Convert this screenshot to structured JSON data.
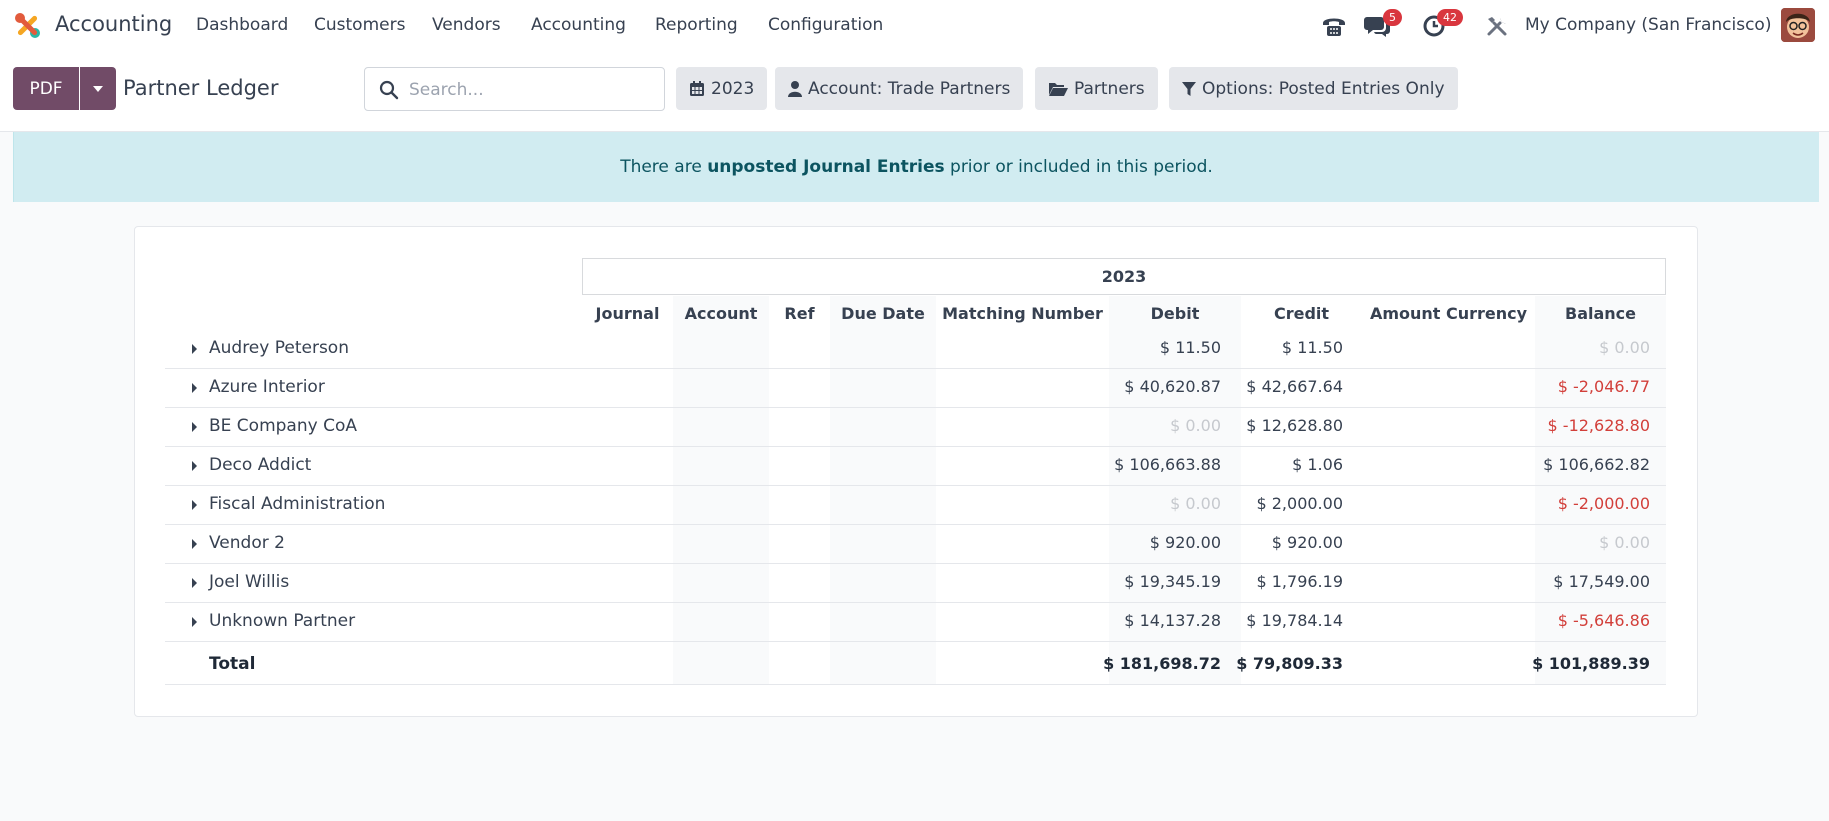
{
  "nav": {
    "app_name": "Accounting",
    "menu": [
      "Dashboard",
      "Customers",
      "Vendors",
      "Accounting",
      "Reporting",
      "Configuration"
    ],
    "messages_count": "5",
    "activities_count": "42",
    "company": "My Company (San Francisco)"
  },
  "control": {
    "pdf_label": "PDF",
    "title": "Partner Ledger",
    "search_placeholder": "Search...",
    "filters": {
      "year": "2023",
      "account": "Account: Trade Partners",
      "partners": "Partners",
      "options": "Options: Posted Entries Only"
    }
  },
  "alert": {
    "prefix": "There are ",
    "link": "unposted Journal Entries",
    "suffix": " prior or included in this period."
  },
  "report": {
    "period": "2023",
    "columns": [
      "Journal",
      "Account",
      "Ref",
      "Due Date",
      "Matching Number",
      "Debit",
      "Credit",
      "Amount Currency",
      "Balance"
    ],
    "rows": [
      {
        "partner": "Audrey Peterson",
        "debit": "$ 11.50",
        "credit": "$ 11.50",
        "balance": "$ 0.00"
      },
      {
        "partner": "Azure Interior",
        "debit": "$ 40,620.87",
        "credit": "$ 42,667.64",
        "balance": "$ -2,046.77"
      },
      {
        "partner": "BE Company CoA",
        "debit": "$ 0.00",
        "credit": "$ 12,628.80",
        "balance": "$ -12,628.80"
      },
      {
        "partner": "Deco Addict",
        "debit": "$ 106,663.88",
        "credit": "$ 1.06",
        "balance": "$ 106,662.82"
      },
      {
        "partner": "Fiscal Administration",
        "debit": "$ 0.00",
        "credit": "$ 2,000.00",
        "balance": "$ -2,000.00"
      },
      {
        "partner": "Vendor 2",
        "debit": "$ 920.00",
        "credit": "$ 920.00",
        "balance": "$ 0.00"
      },
      {
        "partner": "Joel Willis",
        "debit": "$ 19,345.19",
        "credit": "$ 1,796.19",
        "balance": "$ 17,549.00"
      },
      {
        "partner": "Unknown Partner",
        "debit": "$ 14,137.28",
        "credit": "$ 19,784.14",
        "balance": "$ -5,646.86"
      }
    ],
    "total": {
      "label": "Total",
      "debit": "$ 181,698.72",
      "credit": "$ 79,809.33",
      "balance": "$ 101,889.39"
    }
  }
}
